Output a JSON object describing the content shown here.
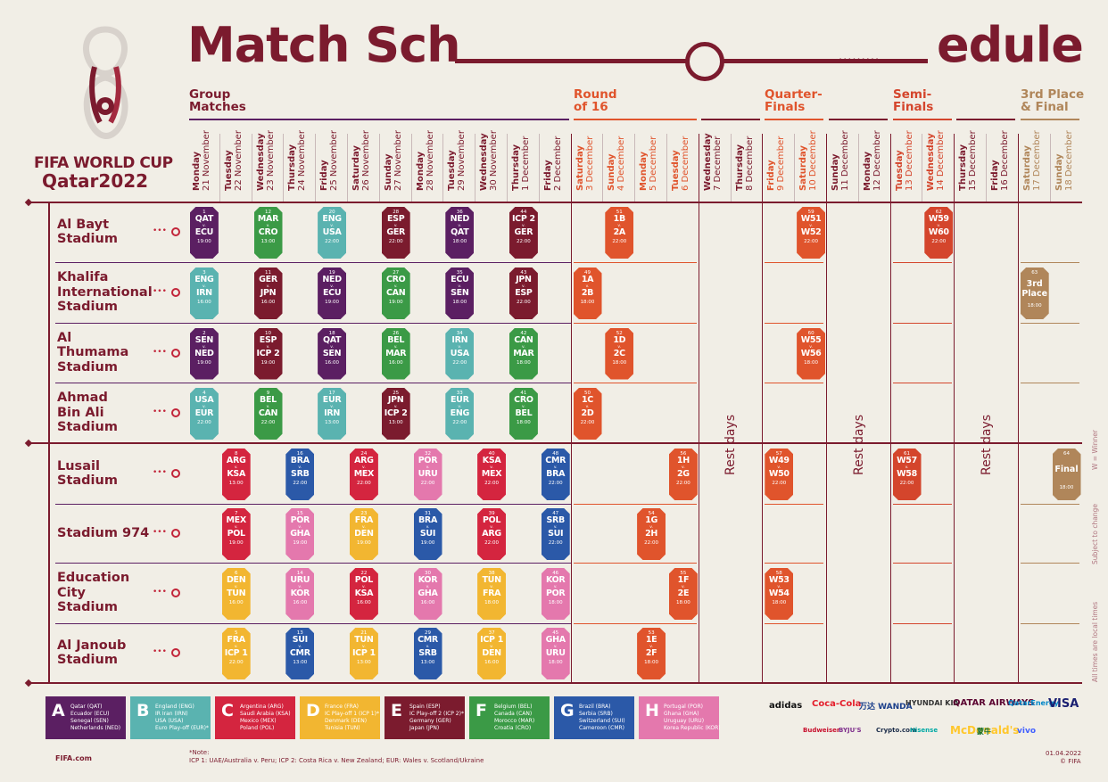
{
  "title": {
    "part1": "Match Sch",
    "part2": "edule"
  },
  "brand": {
    "line1": "FIFA WORLD CUP",
    "line2": "Qatar2022"
  },
  "phases": [
    {
      "id": "gm",
      "label": "Group\nMatches"
    },
    {
      "id": "r16",
      "label": "Round\nof 16"
    },
    {
      "id": "qf",
      "label": "Quarter-\nFinals"
    },
    {
      "id": "sf",
      "label": "Semi-\nFinals"
    },
    {
      "id": "fin",
      "label": "3rd Place\n& Final"
    }
  ],
  "dates": [
    {
      "day": "Monday",
      "date": "21 November",
      "color": "#7b1b2e"
    },
    {
      "day": "Tuesday",
      "date": "22 November",
      "color": "#7b1b2e"
    },
    {
      "day": "Wednesday",
      "date": "23 November",
      "color": "#7b1b2e"
    },
    {
      "day": "Thursday",
      "date": "24 November",
      "color": "#7b1b2e"
    },
    {
      "day": "Friday",
      "date": "25 November",
      "color": "#7b1b2e"
    },
    {
      "day": "Saturday",
      "date": "26 November",
      "color": "#7b1b2e"
    },
    {
      "day": "Sunday",
      "date": "27 November",
      "color": "#7b1b2e"
    },
    {
      "day": "Monday",
      "date": "28 November",
      "color": "#7b1b2e"
    },
    {
      "day": "Tuesday",
      "date": "29 November",
      "color": "#7b1b2e"
    },
    {
      "day": "Wednesday",
      "date": "30 November",
      "color": "#7b1b2e"
    },
    {
      "day": "Thursday",
      "date": "1 December",
      "color": "#7b1b2e"
    },
    {
      "day": "Friday",
      "date": "2 December",
      "color": "#7b1b2e"
    },
    {
      "day": "Saturday",
      "date": "3 December",
      "color": "#e0542c"
    },
    {
      "day": "Sunday",
      "date": "4 December",
      "color": "#e0542c"
    },
    {
      "day": "Monday",
      "date": "5 December",
      "color": "#e0542c"
    },
    {
      "day": "Tuesday",
      "date": "6 December",
      "color": "#e0542c"
    },
    {
      "day": "Wednesday",
      "date": "7 December",
      "color": "#7b1b2e"
    },
    {
      "day": "Thursday",
      "date": "8 December",
      "color": "#7b1b2e"
    },
    {
      "day": "Friday",
      "date": "9 December",
      "color": "#e0542c"
    },
    {
      "day": "Saturday",
      "date": "10 December",
      "color": "#e0542c"
    },
    {
      "day": "Sunday",
      "date": "11 December",
      "color": "#7b1b2e"
    },
    {
      "day": "Monday",
      "date": "12 December",
      "color": "#7b1b2e"
    },
    {
      "day": "Tuesday",
      "date": "13 December",
      "color": "#d4452c"
    },
    {
      "day": "Wednesday",
      "date": "14 December",
      "color": "#d4452c"
    },
    {
      "day": "Thursday",
      "date": "15 December",
      "color": "#7b1b2e"
    },
    {
      "day": "Friday",
      "date": "16 December",
      "color": "#7b1b2e"
    },
    {
      "day": "Saturday",
      "date": "17 December",
      "color": "#b0865a"
    },
    {
      "day": "Sunday",
      "date": "18 December",
      "color": "#b0865a"
    }
  ],
  "stadiums": [
    "Al Bayt\nStadium",
    "Khalifa\nInternational\nStadium",
    "Al\nThumama\nStadium",
    "Ahmad\nBin Ali\nStadium",
    "Lusail\nStadium",
    "Stadium 974",
    "Education\nCity\nStadium",
    "Al Janoub\nStadium"
  ],
  "groupColors": {
    "A": "#5b1f62",
    "B": "#5ab3b0",
    "C": "#d4253f",
    "D": "#f2b631",
    "E": "#7b1b2e",
    "F": "#3b9a46",
    "G": "#2b59a8",
    "H": "#e478ad",
    "R16": "#e0542c",
    "QF": "#e0542c",
    "SF": "#d4452c",
    "FIN": "#b0865a"
  },
  "matches": [
    {
      "no": "1",
      "t1": "QAT",
      "t2": "ECU",
      "time": "19:00",
      "g": "A",
      "col": 0,
      "row": 0
    },
    {
      "no": "12",
      "t1": "MAR",
      "t2": "CRO",
      "time": "13:00",
      "g": "F",
      "col": 2,
      "row": 0
    },
    {
      "no": "20",
      "t1": "ENG",
      "t2": "USA",
      "time": "22:00",
      "g": "B",
      "col": 4,
      "row": 0
    },
    {
      "no": "28",
      "t1": "ESP",
      "t2": "GER",
      "time": "22:00",
      "g": "E",
      "col": 6,
      "row": 0
    },
    {
      "no": "36",
      "t1": "NED",
      "t2": "QAT",
      "time": "18:00",
      "g": "A",
      "col": 8,
      "row": 0
    },
    {
      "no": "44",
      "t1": "ICP 2",
      "t2": "GER",
      "time": "22:00",
      "g": "E",
      "col": 10,
      "row": 0
    },
    {
      "no": "51",
      "t1": "1B",
      "t2": "2A",
      "time": "22:00",
      "g": "R16",
      "col": 13,
      "row": 0
    },
    {
      "no": "59",
      "t1": "W51",
      "t2": "W52",
      "time": "22:00",
      "g": "QF",
      "col": 19,
      "row": 0
    },
    {
      "no": "62",
      "t1": "W59",
      "t2": "W60",
      "time": "22:00",
      "g": "SF",
      "col": 23,
      "row": 0
    },
    {
      "no": "3",
      "t1": "ENG",
      "t2": "IRN",
      "time": "16:00",
      "g": "B",
      "col": 0,
      "row": 1
    },
    {
      "no": "11",
      "t1": "GER",
      "t2": "JPN",
      "time": "16:00",
      "g": "E",
      "col": 2,
      "row": 1
    },
    {
      "no": "19",
      "t1": "NED",
      "t2": "ECU",
      "time": "19:00",
      "g": "A",
      "col": 4,
      "row": 1
    },
    {
      "no": "27",
      "t1": "CRO",
      "t2": "CAN",
      "time": "19:00",
      "g": "F",
      "col": 6,
      "row": 1
    },
    {
      "no": "35",
      "t1": "ECU",
      "t2": "SEN",
      "time": "18:00",
      "g": "A",
      "col": 8,
      "row": 1
    },
    {
      "no": "43",
      "t1": "JPN",
      "t2": "ESP",
      "time": "22:00",
      "g": "E",
      "col": 10,
      "row": 1
    },
    {
      "no": "49",
      "t1": "1A",
      "t2": "2B",
      "time": "18:00",
      "g": "R16",
      "col": 12,
      "row": 1
    },
    {
      "no": "63",
      "t1": "3rd",
      "t2": "Place",
      "time": "18:00",
      "g": "FIN",
      "col": 26,
      "row": 1
    },
    {
      "no": "2",
      "t1": "SEN",
      "t2": "NED",
      "time": "19:00",
      "g": "A",
      "col": 0,
      "row": 2
    },
    {
      "no": "10",
      "t1": "ESP",
      "t2": "ICP 2",
      "time": "19:00",
      "g": "E",
      "col": 2,
      "row": 2
    },
    {
      "no": "18",
      "t1": "QAT",
      "t2": "SEN",
      "time": "16:00",
      "g": "A",
      "col": 4,
      "row": 2
    },
    {
      "no": "26",
      "t1": "BEL",
      "t2": "MAR",
      "time": "16:00",
      "g": "F",
      "col": 6,
      "row": 2
    },
    {
      "no": "34",
      "t1": "IRN",
      "t2": "USA",
      "time": "22:00",
      "g": "B",
      "col": 8,
      "row": 2
    },
    {
      "no": "42",
      "t1": "CAN",
      "t2": "MAR",
      "time": "18:00",
      "g": "F",
      "col": 10,
      "row": 2
    },
    {
      "no": "52",
      "t1": "1D",
      "t2": "2C",
      "time": "18:00",
      "g": "R16",
      "col": 13,
      "row": 2
    },
    {
      "no": "60",
      "t1": "W55",
      "t2": "W56",
      "time": "18:00",
      "g": "QF",
      "col": 19,
      "row": 2
    },
    {
      "no": "4",
      "t1": "USA",
      "t2": "EUR",
      "time": "22:00",
      "g": "B",
      "col": 0,
      "row": 3
    },
    {
      "no": "9",
      "t1": "BEL",
      "t2": "CAN",
      "time": "22:00",
      "g": "F",
      "col": 2,
      "row": 3
    },
    {
      "no": "17",
      "t1": "EUR",
      "t2": "IRN",
      "time": "13:00",
      "g": "B",
      "col": 4,
      "row": 3
    },
    {
      "no": "25",
      "t1": "JPN",
      "t2": "ICP 2",
      "time": "13:00",
      "g": "E",
      "col": 6,
      "row": 3
    },
    {
      "no": "33",
      "t1": "EUR",
      "t2": "ENG",
      "time": "22:00",
      "g": "B",
      "col": 8,
      "row": 3
    },
    {
      "no": "41",
      "t1": "CRO",
      "t2": "BEL",
      "time": "18:00",
      "g": "F",
      "col": 10,
      "row": 3
    },
    {
      "no": "50",
      "t1": "1C",
      "t2": "2D",
      "time": "22:00",
      "g": "R16",
      "col": 12,
      "row": 3
    },
    {
      "no": "8",
      "t1": "ARG",
      "t2": "KSA",
      "time": "13:00",
      "g": "C",
      "col": 1,
      "row": 4
    },
    {
      "no": "16",
      "t1": "BRA",
      "t2": "SRB",
      "time": "22:00",
      "g": "G",
      "col": 3,
      "row": 4
    },
    {
      "no": "24",
      "t1": "ARG",
      "t2": "MEX",
      "time": "22:00",
      "g": "C",
      "col": 5,
      "row": 4
    },
    {
      "no": "32",
      "t1": "POR",
      "t2": "URU",
      "time": "22:00",
      "g": "H",
      "col": 7,
      "row": 4
    },
    {
      "no": "40",
      "t1": "KSA",
      "t2": "MEX",
      "time": "22:00",
      "g": "C",
      "col": 9,
      "row": 4
    },
    {
      "no": "48",
      "t1": "CMR",
      "t2": "BRA",
      "time": "22:00",
      "g": "G",
      "col": 11,
      "row": 4
    },
    {
      "no": "56",
      "t1": "1H",
      "t2": "2G",
      "time": "22:00",
      "g": "R16",
      "col": 15,
      "row": 4
    },
    {
      "no": "57",
      "t1": "W49",
      "t2": "W50",
      "time": "22:00",
      "g": "QF",
      "col": 18,
      "row": 4
    },
    {
      "no": "61",
      "t1": "W57",
      "t2": "W58",
      "time": "22:00",
      "g": "SF",
      "col": 22,
      "row": 4
    },
    {
      "no": "64",
      "t1": "Final",
      "t2": "",
      "time": "18:00",
      "g": "FIN",
      "col": 27,
      "row": 4
    },
    {
      "no": "7",
      "t1": "MEX",
      "t2": "POL",
      "time": "19:00",
      "g": "C",
      "col": 1,
      "row": 5
    },
    {
      "no": "15",
      "t1": "POR",
      "t2": "GHA",
      "time": "19:00",
      "g": "H",
      "col": 3,
      "row": 5
    },
    {
      "no": "23",
      "t1": "FRA",
      "t2": "DEN",
      "time": "19:00",
      "g": "D",
      "col": 5,
      "row": 5
    },
    {
      "no": "31",
      "t1": "BRA",
      "t2": "SUI",
      "time": "19:00",
      "g": "G",
      "col": 7,
      "row": 5
    },
    {
      "no": "39",
      "t1": "POL",
      "t2": "ARG",
      "time": "22:00",
      "g": "C",
      "col": 9,
      "row": 5
    },
    {
      "no": "47",
      "t1": "SRB",
      "t2": "SUI",
      "time": "22:00",
      "g": "G",
      "col": 11,
      "row": 5
    },
    {
      "no": "54",
      "t1": "1G",
      "t2": "2H",
      "time": "22:00",
      "g": "R16",
      "col": 14,
      "row": 5
    },
    {
      "no": "6",
      "t1": "DEN",
      "t2": "TUN",
      "time": "16:00",
      "g": "D",
      "col": 1,
      "row": 6
    },
    {
      "no": "14",
      "t1": "URU",
      "t2": "KOR",
      "time": "16:00",
      "g": "H",
      "col": 3,
      "row": 6
    },
    {
      "no": "22",
      "t1": "POL",
      "t2": "KSA",
      "time": "16:00",
      "g": "C",
      "col": 5,
      "row": 6
    },
    {
      "no": "30",
      "t1": "KOR",
      "t2": "GHA",
      "time": "16:00",
      "g": "H",
      "col": 7,
      "row": 6
    },
    {
      "no": "38",
      "t1": "TUN",
      "t2": "FRA",
      "time": "18:00",
      "g": "D",
      "col": 9,
      "row": 6
    },
    {
      "no": "46",
      "t1": "KOR",
      "t2": "POR",
      "time": "18:00",
      "g": "H",
      "col": 11,
      "row": 6
    },
    {
      "no": "55",
      "t1": "1F",
      "t2": "2E",
      "time": "18:00",
      "g": "R16",
      "col": 15,
      "row": 6
    },
    {
      "no": "58",
      "t1": "W53",
      "t2": "W54",
      "time": "18:00",
      "g": "QF",
      "col": 18,
      "row": 6
    },
    {
      "no": "5",
      "t1": "FRA",
      "t2": "ICP 1",
      "time": "22:00",
      "g": "D",
      "col": 1,
      "row": 7
    },
    {
      "no": "13",
      "t1": "SUI",
      "t2": "CMR",
      "time": "13:00",
      "g": "G",
      "col": 3,
      "row": 7
    },
    {
      "no": "21",
      "t1": "TUN",
      "t2": "ICP 1",
      "time": "13:00",
      "g": "D",
      "col": 5,
      "row": 7
    },
    {
      "no": "29",
      "t1": "CMR",
      "t2": "SRB",
      "time": "13:00",
      "g": "G",
      "col": 7,
      "row": 7
    },
    {
      "no": "37",
      "t1": "ICP 1",
      "t2": "DEN",
      "time": "16:00",
      "g": "D",
      "col": 9,
      "row": 7
    },
    {
      "no": "45",
      "t1": "GHA",
      "t2": "URU",
      "time": "18:00",
      "g": "H",
      "col": 11,
      "row": 7
    },
    {
      "no": "53",
      "t1": "1E",
      "t2": "2F",
      "time": "18:00",
      "g": "R16",
      "col": 14,
      "row": 7
    }
  ],
  "vs_label": "v.",
  "rest_label": "Rest days",
  "side_notes": [
    "All times are local times",
    "Subject to change",
    "W = Winner"
  ],
  "legend": [
    {
      "letter": "A",
      "color": "#5b1f62",
      "items": [
        "Qatar (QAT)",
        "Ecuador (ECU)",
        "Senegal (SEN)",
        "Netherlands (NED)"
      ]
    },
    {
      "letter": "B",
      "color": "#5ab3b0",
      "items": [
        "England (ENG)",
        "IR Iran (IRN)",
        "USA (USA)",
        "Euro Play-off (EUR)*"
      ]
    },
    {
      "letter": "C",
      "color": "#d4253f",
      "items": [
        "Argentina (ARG)",
        "Saudi Arabia (KSA)",
        "Mexico (MEX)",
        "Poland (POL)"
      ]
    },
    {
      "letter": "D",
      "color": "#f2b631",
      "items": [
        "France (FRA)",
        "IC Play-off 1 (ICP 1)*",
        "Denmark (DEN)",
        "Tunisia (TUN)"
      ]
    },
    {
      "letter": "E",
      "color": "#7b1b2e",
      "items": [
        "Spain (ESP)",
        "IC Play-off 2 (ICP 2)*",
        "Germany (GER)",
        "Japan (JPN)"
      ]
    },
    {
      "letter": "F",
      "color": "#3b9a46",
      "items": [
        "Belgium (BEL)",
        "Canada (CAN)",
        "Morocco (MAR)",
        "Croatia (CRO)"
      ]
    },
    {
      "letter": "G",
      "color": "#2b59a8",
      "items": [
        "Brazil (BRA)",
        "Serbia (SRB)",
        "Switzerland (SUI)",
        "Cameroon (CMR)"
      ]
    },
    {
      "letter": "H",
      "color": "#e478ad",
      "items": [
        "Portugal (POR)",
        "Ghana (GHA)",
        "Uruguay (URU)",
        "Korea Republic (KOR)"
      ]
    }
  ],
  "footnote": {
    "label": "*Note:",
    "text": "ICP 1: UAE/Australia v. Peru;  ICP 2: Costa Rica v. New Zealand;  EUR: Wales v. Scotland/Ukraine"
  },
  "fifa_link": "FIFA.com",
  "sponsors": [
    "adidas",
    "Coca-Cola",
    "万达 WANDA",
    "HYUNDAI KIA",
    "QATAR AIRWAYS",
    "QatarEnergy",
    "VISA",
    "Budweiser",
    "BYJU'S",
    "Crypto.com",
    "Hisense",
    "McDonald's",
    "蒙牛",
    "vivo"
  ],
  "date_stamp": "01.04.2022",
  "copyright": "© FIFA"
}
